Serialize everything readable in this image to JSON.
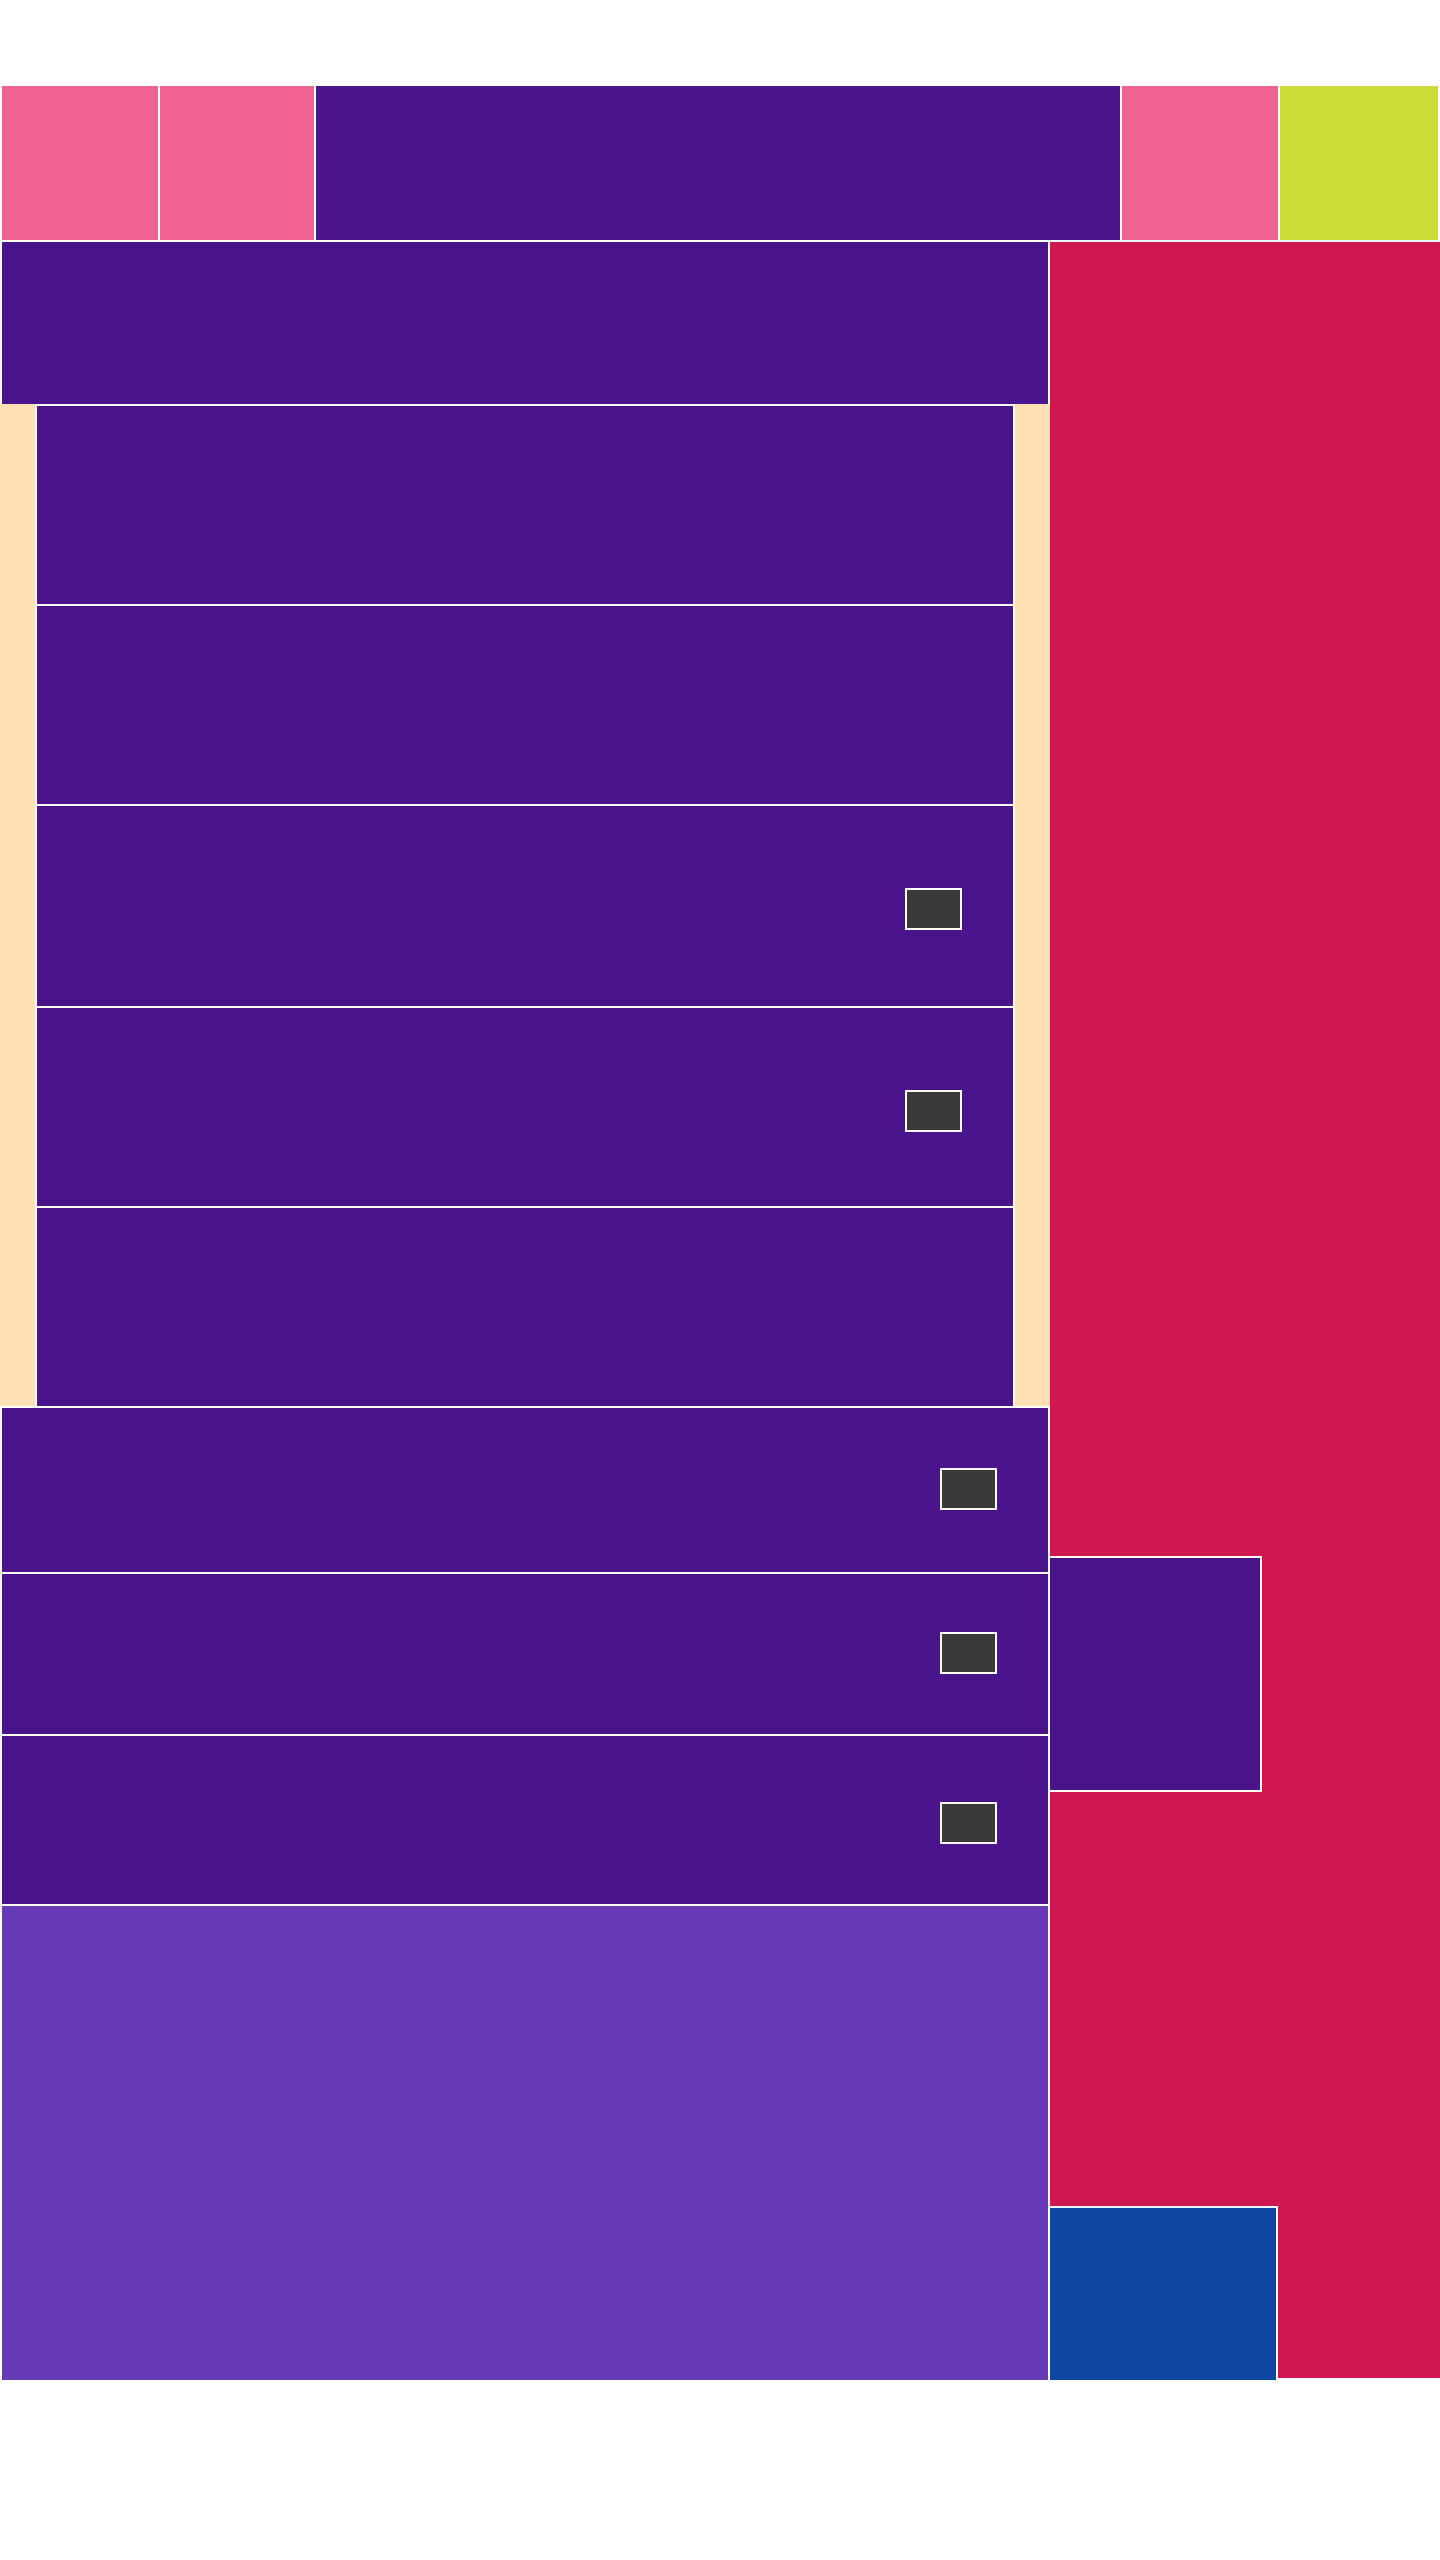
{
  "colors": {
    "background": "#ffffff",
    "pink": "#f06292",
    "dark_purple": "#4a148c",
    "lime": "#cddc39",
    "crimson": "#d1174f",
    "peach": "#ffe0b2",
    "medium_purple": "#673ab7",
    "blue": "#0d47a1",
    "control_gray": "#3a3a3a",
    "divider": "#ffffff"
  },
  "toolbar": {
    "button_1_icon": "blank-tile",
    "button_2_icon": "blank-tile",
    "button_3_icon": "blank-tile",
    "button_4_icon": "blank-tile"
  },
  "list_rows": [
    {
      "has_checkbox": false
    },
    {
      "has_checkbox": false
    },
    {
      "has_checkbox": true
    },
    {
      "has_checkbox": true
    },
    {
      "has_checkbox": false
    },
    {
      "has_checkbox": true
    },
    {
      "has_checkbox": true
    },
    {
      "has_checkbox": true
    }
  ]
}
